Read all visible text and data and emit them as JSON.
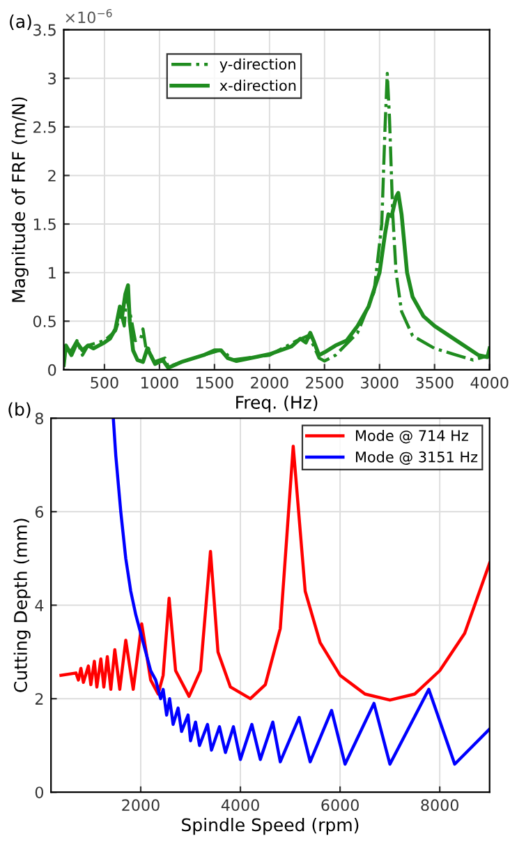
{
  "chart_data": [
    {
      "type": "line",
      "xlabel": "Freq. (Hz)",
      "ylabel": "Magnitude of FRF (m/N)",
      "annotations": [
        "(a)",
        "×10$^{−6}$"
      ],
      "xlim": [
        130,
        4000
      ],
      "xticks": [
        500,
        1000,
        1500,
        2000,
        2500,
        3000,
        3500,
        4000
      ],
      "ylim": [
        0,
        3.5
      ],
      "yticks": [
        0,
        0.5,
        1,
        1.5,
        2,
        2.5,
        3,
        3.5
      ],
      "grid": true,
      "legend": "top",
      "series": [
        {
          "name": "y-direction",
          "color": "#1f8c1f",
          "line_style": "dashdot",
          "x": [
            130,
            200,
            250,
            300,
            350,
            500,
            600,
            650,
            680,
            700,
            730,
            780,
            830,
            850,
            880,
            900,
            950,
            1050,
            1080,
            1200,
            1400,
            1550,
            1600,
            1650,
            2000,
            2250,
            2350,
            2400,
            2450,
            2500,
            2600,
            2800,
            2950,
            3020,
            3050,
            3070,
            3090,
            3120,
            3150,
            3200,
            3300,
            3500,
            3700,
            3850,
            4000
          ],
          "values": [
            0.2,
            0.2,
            0.3,
            0.15,
            0.25,
            0.3,
            0.4,
            0.58,
            0.45,
            0.75,
            0.6,
            0.3,
            0.32,
            0.42,
            0.2,
            0.22,
            0.08,
            0.12,
            0.03,
            0.08,
            0.15,
            0.2,
            0.18,
            0.1,
            0.15,
            0.3,
            0.35,
            0.25,
            0.12,
            0.09,
            0.15,
            0.38,
            0.8,
            1.5,
            2.5,
            3.05,
            2.6,
            1.6,
            1.0,
            0.6,
            0.35,
            0.22,
            0.15,
            0.1,
            0.15
          ]
        },
        {
          "name": "x-direction",
          "color": "#1f8c1f",
          "line_style": "solid",
          "x": [
            130,
            150,
            200,
            250,
            300,
            350,
            400,
            500,
            550,
            600,
            640,
            660,
            690,
            714,
            730,
            760,
            800,
            850,
            890,
            920,
            960,
            1030,
            1080,
            1200,
            1400,
            1500,
            1560,
            1620,
            1700,
            2000,
            2200,
            2280,
            2330,
            2370,
            2400,
            2450,
            2500,
            2600,
            2700,
            2800,
            2900,
            3000,
            3050,
            3080,
            3110,
            3150,
            3170,
            3200,
            3250,
            3300,
            3400,
            3500,
            3700,
            3900,
            3980,
            4000
          ],
          "values": [
            0.05,
            0.25,
            0.15,
            0.28,
            0.2,
            0.25,
            0.22,
            0.28,
            0.32,
            0.42,
            0.65,
            0.55,
            0.78,
            0.87,
            0.5,
            0.2,
            0.1,
            0.08,
            0.22,
            0.15,
            0.06,
            0.1,
            0.02,
            0.08,
            0.15,
            0.2,
            0.2,
            0.12,
            0.09,
            0.16,
            0.24,
            0.32,
            0.28,
            0.38,
            0.3,
            0.15,
            0.18,
            0.25,
            0.3,
            0.45,
            0.65,
            1.0,
            1.4,
            1.6,
            1.58,
            1.78,
            1.82,
            1.6,
            1.0,
            0.75,
            0.55,
            0.45,
            0.3,
            0.15,
            0.13,
            0.22
          ]
        }
      ]
    },
    {
      "type": "line",
      "xlabel": "Spindle Speed (rpm)",
      "ylabel": "Cutting Depth (mm)",
      "annotations": [
        "(b)"
      ],
      "xlim": [
        200,
        9000
      ],
      "xticks": [
        2000,
        4000,
        6000,
        8000
      ],
      "ylim": [
        0,
        8
      ],
      "yticks": [
        0,
        2,
        4,
        6,
        8
      ],
      "grid": true,
      "legend": "top right",
      "series": [
        {
          "name": "Mode @ 714 Hz",
          "color": "#ff0000",
          "line_style": "solid",
          "x": [
            400,
            700,
            750,
            800,
            850,
            950,
            1000,
            1070,
            1120,
            1200,
            1260,
            1330,
            1400,
            1480,
            1580,
            1700,
            1850,
            2020,
            2200,
            2350,
            2450,
            2570,
            2700,
            2970,
            3200,
            3400,
            3550,
            3800,
            4200,
            4500,
            4800,
            5060,
            5300,
            5600,
            6000,
            6500,
            7000,
            7500,
            8000,
            8500,
            9000
          ],
          "values": [
            2.5,
            2.55,
            2.4,
            2.65,
            2.35,
            2.7,
            2.3,
            2.8,
            2.25,
            2.85,
            2.25,
            2.9,
            2.2,
            3.05,
            2.2,
            3.25,
            2.2,
            3.6,
            2.4,
            2.1,
            2.5,
            4.15,
            2.6,
            2.05,
            2.6,
            5.15,
            3.0,
            2.25,
            2.0,
            2.3,
            3.5,
            7.4,
            4.3,
            3.2,
            2.5,
            2.1,
            1.97,
            2.1,
            2.6,
            3.4,
            4.9
          ]
        },
        {
          "name": "Mode @ 3151 Hz",
          "color": "#0000ff",
          "line_style": "solid",
          "x": [
            1450,
            1500,
            1600,
            1700,
            1800,
            1900,
            2000,
            2100,
            2200,
            2300,
            2400,
            2450,
            2520,
            2580,
            2650,
            2750,
            2820,
            2950,
            3000,
            3100,
            3180,
            3340,
            3420,
            3580,
            3700,
            3860,
            4000,
            4230,
            4400,
            4650,
            4800,
            5180,
            5400,
            5830,
            6100,
            6680,
            7000,
            7780,
            8300,
            9000
          ],
          "values": [
            8,
            7.2,
            6.0,
            5.0,
            4.3,
            3.8,
            3.4,
            3.0,
            2.6,
            2.4,
            2.0,
            2.2,
            1.65,
            2.0,
            1.45,
            1.8,
            1.3,
            1.65,
            1.1,
            1.5,
            1.0,
            1.45,
            0.9,
            1.4,
            0.85,
            1.4,
            0.7,
            1.45,
            0.7,
            1.5,
            0.65,
            1.6,
            0.65,
            1.75,
            0.6,
            1.9,
            0.6,
            2.2,
            0.6,
            1.35
          ]
        }
      ]
    }
  ]
}
